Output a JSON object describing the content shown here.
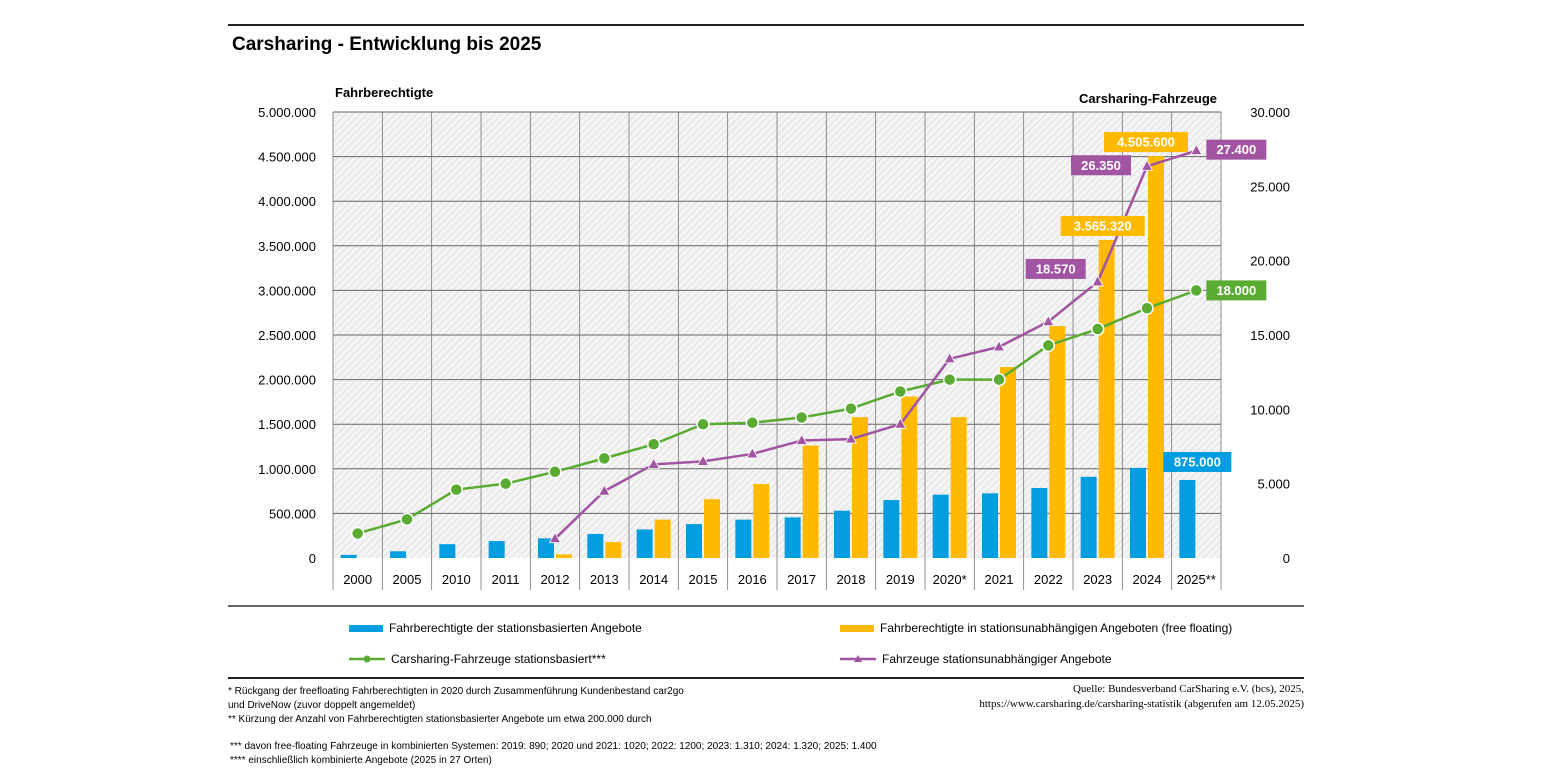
{
  "title": "Carsharing - Entwicklung bis 2025",
  "chart_data": {
    "type": "bar",
    "title": "Carsharing - Entwicklung bis 2025",
    "ylabel_left": "Fahrberechtigte",
    "ylabel_right": "Carsharing-Fahrzeuge",
    "ylim_left": [
      0,
      5000000
    ],
    "ylim_right": [
      0,
      30000
    ],
    "yticks_left": [
      "0",
      "500.000",
      "1.000.000",
      "1.500.000",
      "2.000.000",
      "2.500.000",
      "3.000.000",
      "3.500.000",
      "4.000.000",
      "4.500.000",
      "5.000.000"
    ],
    "yticks_right": [
      "0",
      "5.000",
      "10.000",
      "15.000",
      "20.000",
      "25.000",
      "30.000"
    ],
    "categories": [
      "2000",
      "2005",
      "2010",
      "2011",
      "2012",
      "2013",
      "2014",
      "2015",
      "2016",
      "2017",
      "2018",
      "2019",
      "2020*",
      "2021",
      "2022",
      "2023",
      "2024",
      "2025**"
    ],
    "grid": true,
    "series": [
      {
        "name": "Fahrberechtigte der stationsbasierten Angebote",
        "kind": "bar",
        "axis": "left",
        "color": "#009ee0",
        "values": [
          35000,
          75000,
          155000,
          190000,
          220000,
          270000,
          320000,
          380000,
          430000,
          455000,
          530000,
          650000,
          710000,
          725000,
          785000,
          910000,
          1010000,
          875000
        ]
      },
      {
        "name": "Fahrberechtigte in stationsunabhängigen Angeboten (free floating)",
        "kind": "bar",
        "axis": "left",
        "color": "#fdba00",
        "values": [
          0,
          0,
          0,
          0,
          40000,
          180000,
          430000,
          660000,
          830000,
          1260000,
          1580000,
          1810000,
          1580000,
          2140000,
          2600000,
          3565320,
          4505600,
          null
        ]
      },
      {
        "name": "Carsharing-Fahrzeuge stationsbasiert***",
        "kind": "line",
        "marker": "circle",
        "axis": "right",
        "color": "#5aab32",
        "values": [
          1650,
          2600,
          4600,
          5000,
          5800,
          6700,
          7650,
          9000,
          9100,
          9450,
          10050,
          11200,
          12000,
          12000,
          14300,
          15400,
          16800,
          18000
        ]
      },
      {
        "name": "Fahrzeuge stationsunabhängiger Angebote",
        "kind": "line",
        "marker": "triangle",
        "axis": "right",
        "color": "#a154a1",
        "values": [
          null,
          null,
          null,
          null,
          1300,
          4500,
          6300,
          6500,
          7000,
          7900,
          8000,
          9000,
          13400,
          14200,
          15900,
          18570,
          26350,
          27400
        ]
      }
    ],
    "data_labels": [
      {
        "text": "4.505.600",
        "series": 1,
        "category": "2024",
        "color": "#fdba00"
      },
      {
        "text": "3.565.320",
        "series": 1,
        "category": "2023",
        "color": "#fdba00"
      },
      {
        "text": "26.350",
        "series": 3,
        "category": "2024",
        "color": "#a154a1"
      },
      {
        "text": "27.400",
        "series": 3,
        "category": "2025**",
        "color": "#a154a1"
      },
      {
        "text": "18.570",
        "series": 3,
        "category": "2023",
        "color": "#a154a1"
      },
      {
        "text": "18.000",
        "series": 2,
        "category": "2025**",
        "color": "#5aab32"
      },
      {
        "text": "875.000",
        "series": 0,
        "category": "2025**",
        "color": "#009ee0"
      }
    ]
  },
  "legend": [
    "Fahrberechtigte der stationsbasierten Angebote",
    "Fahrberechtigte in stationsunabhängigen Angeboten (free floating)",
    "Carsharing-Fahrzeuge stationsbasiert***",
    "Fahrzeuge stationsunabhängiger Angebote"
  ],
  "footnotes": {
    "note1_line1": "* Rückgang der freefloating Fahrberechtigten in 2020 durch Zusammenführung Kundenbestand car2go",
    "note1_line2": "und DriveNow (zuvor doppelt angemeldet)",
    "note2": "** Kürzung der Anzahl von Fahrberechtigten stationsbasierter Angebote um etwa 200.000 durch",
    "note3": "*** davon free-floating Fahrzeuge in kombinierten Systemen: 2019: 890; 2020 und 2021: 1020; 2022: 1200; 2023: 1.310; 2024: 1.320; 2025: 1.400",
    "note4": "**** einschließlich kombinierte Angebote (2025 in 27 Orten)"
  },
  "source": {
    "line1": "Quelle: Bundesverband CarSharing e.V. (bcs), 2025,",
    "line2": "https://www.carsharing.de/carsharing-statistik (abgerufen am 12.05.2025)"
  }
}
